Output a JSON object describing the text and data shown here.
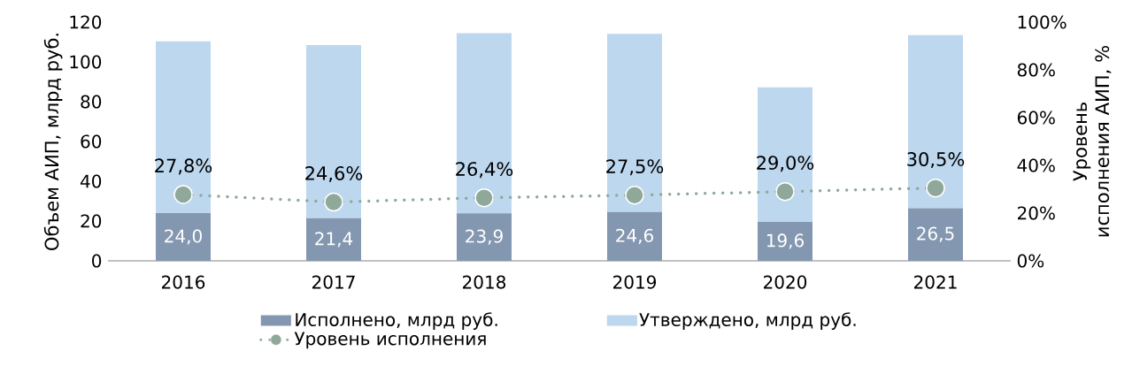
{
  "chart_data": {
    "type": "bar",
    "stacked": true,
    "categories": [
      "2016",
      "2017",
      "2018",
      "2019",
      "2020",
      "2021"
    ],
    "ylabel": "Объем АИП, млрд руб.",
    "y2label": "Уровень исполнения АИП, %",
    "ylim": [
      0,
      120
    ],
    "yticks": [
      0,
      20,
      40,
      60,
      80,
      100,
      120
    ],
    "y2lim": [
      0,
      100
    ],
    "y2ticks": [
      {
        "value": 0,
        "label": "0%"
      },
      {
        "value": 20,
        "label": "20%"
      },
      {
        "value": 40,
        "label": "40%"
      },
      {
        "value": 60,
        "label": "60%"
      },
      {
        "value": 80,
        "label": "80%"
      },
      {
        "value": 100,
        "label": "100%"
      }
    ],
    "legend": "bottom",
    "series": [
      {
        "name": "Исполнено, млрд руб.",
        "color": "#8497b0",
        "values": [
          24.0,
          21.4,
          23.9,
          24.6,
          19.6,
          26.5
        ],
        "value_labels": [
          "24,0",
          "21,4",
          "23,9",
          "24,6",
          "19,6",
          "26,5"
        ]
      },
      {
        "name": "Утверждено, млрд руб.",
        "color": "#bdd7ee",
        "values": [
          86.3,
          87.0,
          90.5,
          89.5,
          67.6,
          86.9
        ]
      },
      {
        "name": "Уровень исполнения",
        "type": "line",
        "axis": "y2",
        "color": "#8fa89a",
        "marker": "circle",
        "line_style": "dotted",
        "values": [
          27.8,
          24.6,
          26.4,
          27.5,
          29.0,
          30.5
        ],
        "value_labels": [
          "27,8%",
          "24,6%",
          "26,4%",
          "27,5%",
          "29,0%",
          "30,5%"
        ]
      }
    ]
  }
}
